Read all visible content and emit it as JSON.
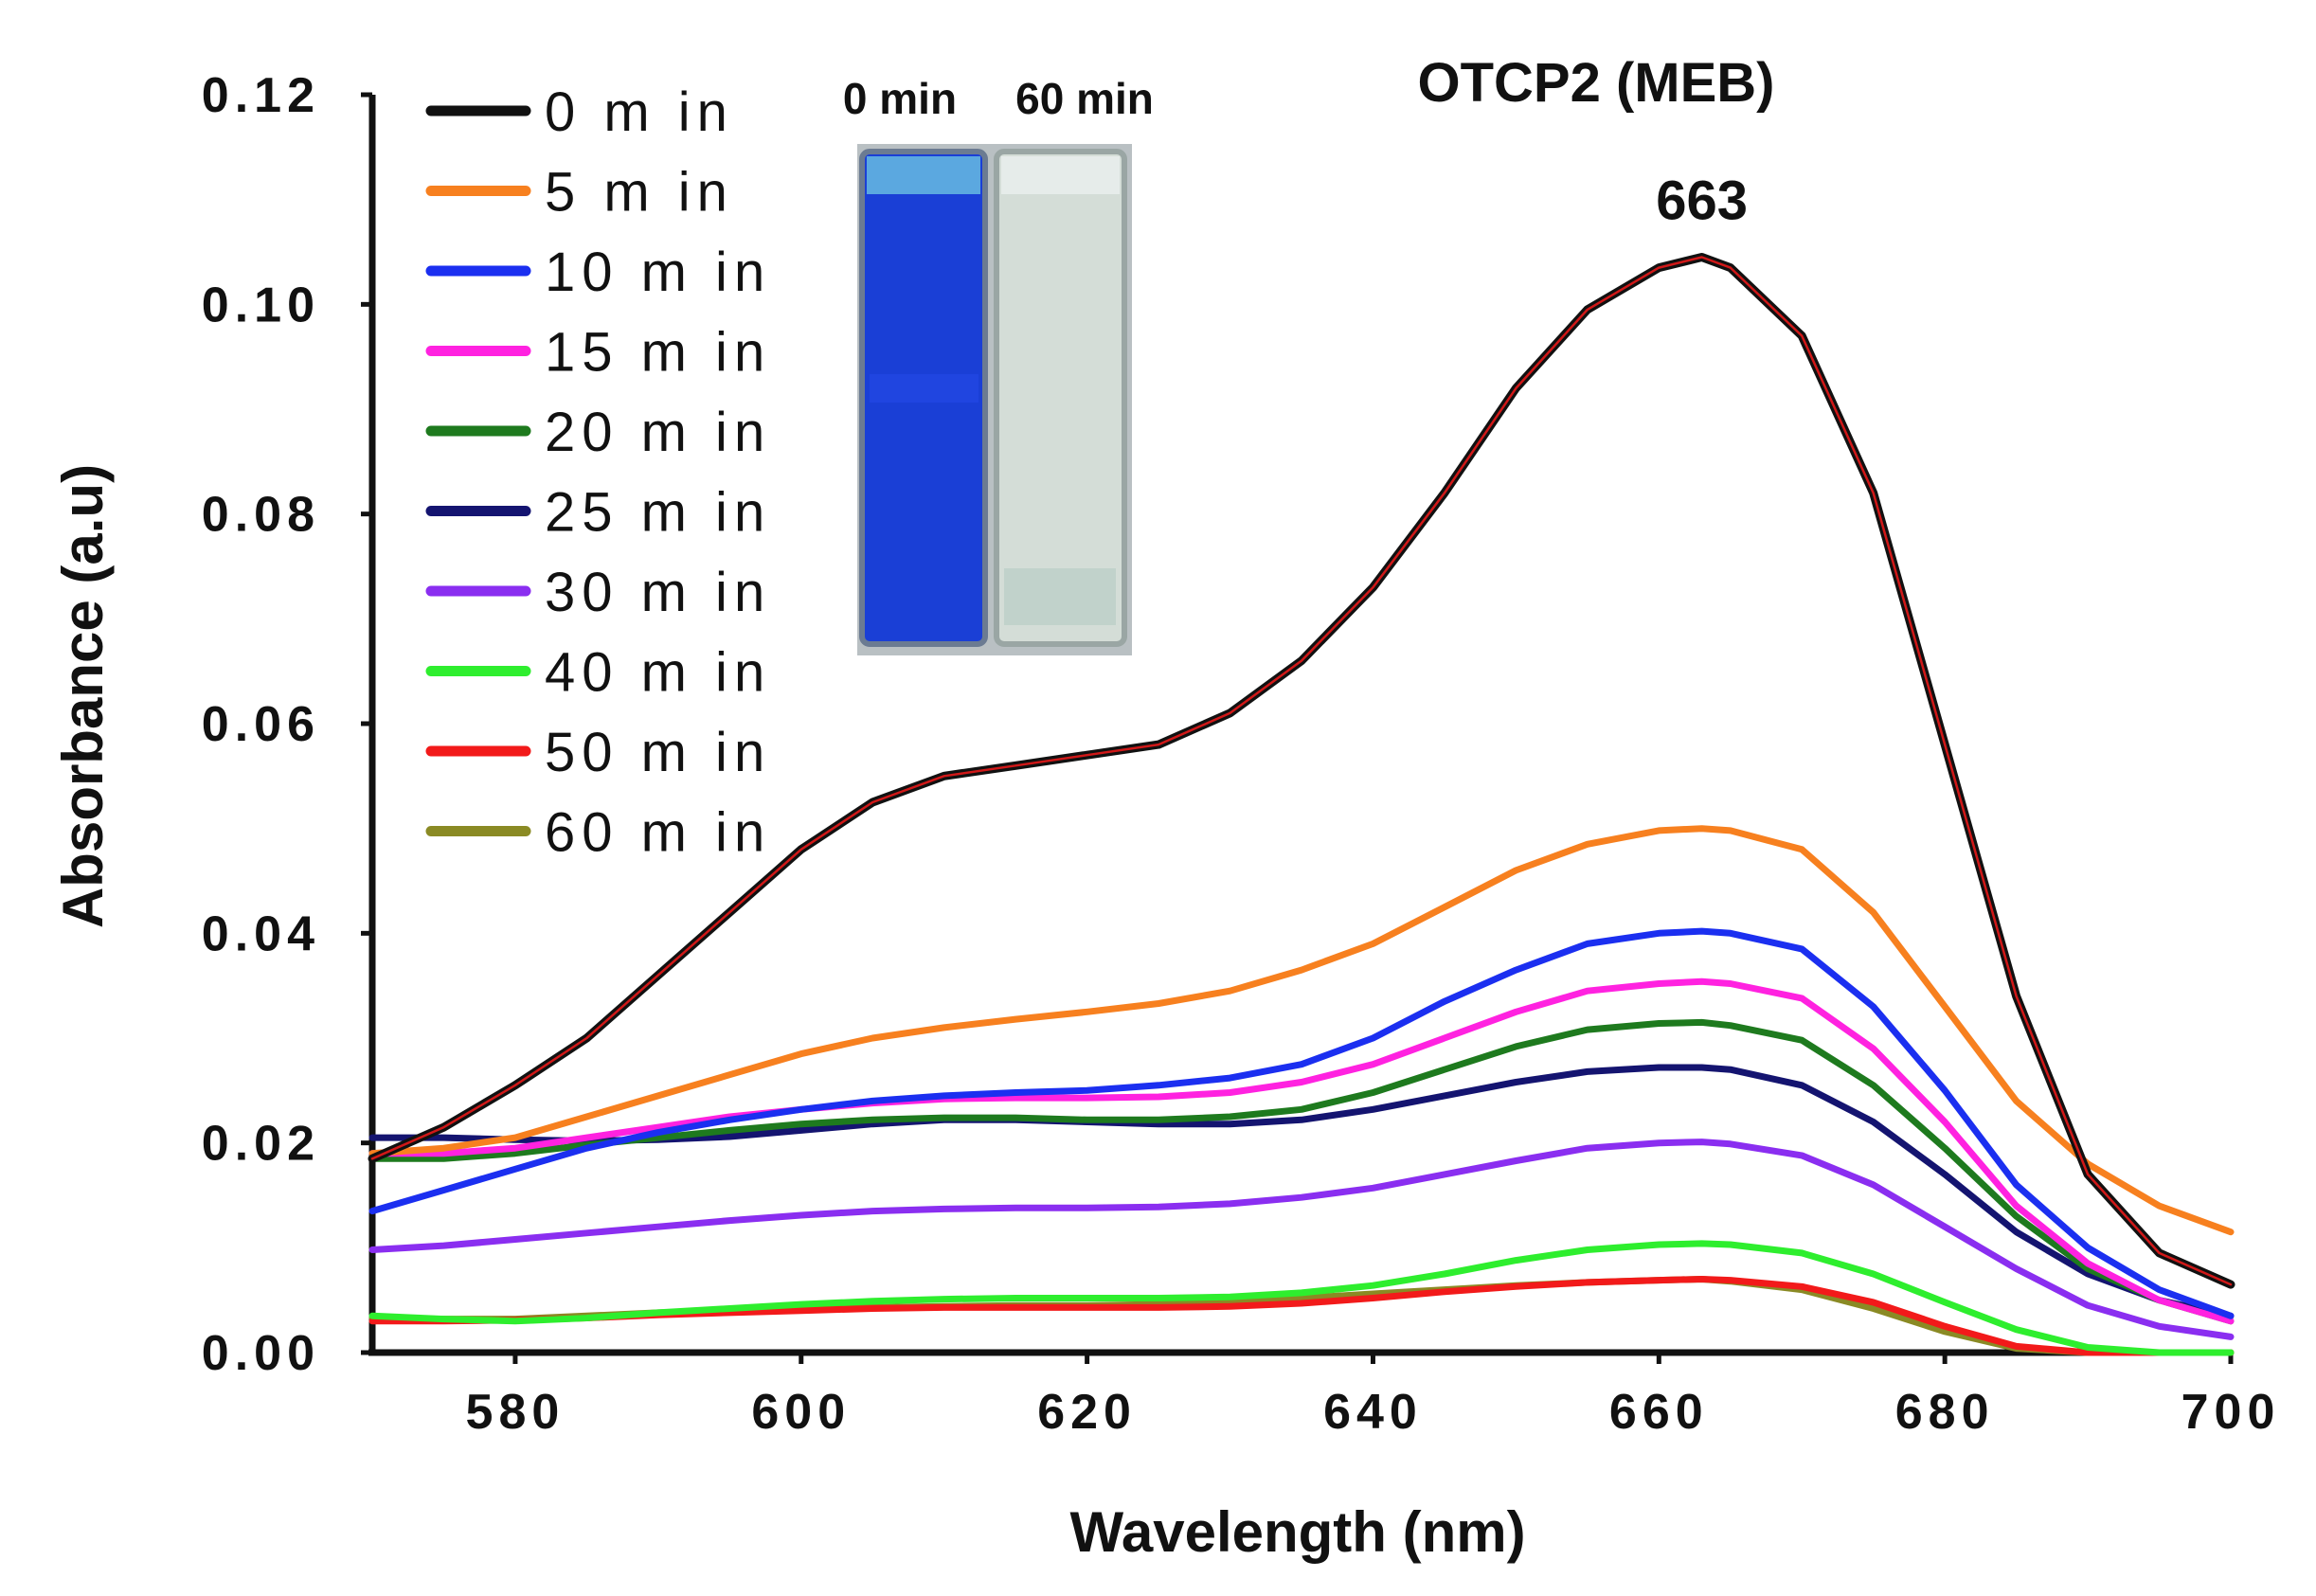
{
  "chart_data": {
    "type": "line",
    "title": "OTCP2 (MEB)",
    "xlabel": "Wavelength (nm)",
    "ylabel": "Absorbance (a.u)",
    "xlim": [
      570,
      700
    ],
    "ylim": [
      0,
      0.12
    ],
    "xticks": [
      580,
      600,
      620,
      640,
      660,
      680,
      700
    ],
    "yticks": [
      "0.00",
      "0.02",
      "0.04",
      "0.06",
      "0.08",
      "0.10",
      "0.12"
    ],
    "annotations": [
      {
        "text": "663",
        "x": 663,
        "y": 0.1045
      }
    ],
    "inset": {
      "labels": [
        "0 min",
        "60 min"
      ],
      "colors": [
        "#1a3fd6",
        "#d4ddd7"
      ]
    },
    "x": [
      570,
      575,
      580,
      585,
      590,
      595,
      600,
      605,
      610,
      615,
      620,
      625,
      630,
      635,
      640,
      645,
      650,
      655,
      660,
      663,
      665,
      670,
      675,
      680,
      685,
      690,
      695,
      700
    ],
    "series": [
      {
        "name": "0 m in",
        "color": "#111111",
        "width": 9,
        "core": "#d01818",
        "values": [
          0.0185,
          0.0215,
          0.0255,
          0.03,
          0.036,
          0.042,
          0.048,
          0.0525,
          0.055,
          0.056,
          0.057,
          0.058,
          0.061,
          0.066,
          0.073,
          0.082,
          0.092,
          0.0995,
          0.1035,
          0.1045,
          0.1035,
          0.097,
          0.082,
          0.058,
          0.034,
          0.017,
          0.0095,
          0.0065
        ]
      },
      {
        "name": "5 m in",
        "color": "#f7801f",
        "width": 7,
        "values": [
          0.019,
          0.0195,
          0.0205,
          0.0225,
          0.0245,
          0.0265,
          0.0285,
          0.03,
          0.031,
          0.0318,
          0.0325,
          0.0333,
          0.0345,
          0.0365,
          0.039,
          0.0425,
          0.046,
          0.0485,
          0.0498,
          0.05,
          0.0498,
          0.048,
          0.042,
          0.033,
          0.024,
          0.018,
          0.014,
          0.0115
        ]
      },
      {
        "name": "10 m in",
        "color": "#1b2ff0",
        "width": 7,
        "values": [
          0.0135,
          0.0155,
          0.0175,
          0.0195,
          0.021,
          0.0222,
          0.0232,
          0.024,
          0.0245,
          0.0248,
          0.025,
          0.0255,
          0.0262,
          0.0275,
          0.03,
          0.0335,
          0.0365,
          0.039,
          0.04,
          0.0402,
          0.04,
          0.0385,
          0.033,
          0.025,
          0.016,
          0.01,
          0.006,
          0.0035
        ]
      },
      {
        "name": "15 m in",
        "color": "#ff22e0",
        "width": 7,
        "values": [
          0.019,
          0.019,
          0.0195,
          0.0205,
          0.0215,
          0.0225,
          0.0232,
          0.0238,
          0.0242,
          0.0243,
          0.0243,
          0.0244,
          0.0248,
          0.0258,
          0.0275,
          0.03,
          0.0325,
          0.0345,
          0.0352,
          0.0354,
          0.0352,
          0.0338,
          0.029,
          0.022,
          0.014,
          0.0085,
          0.005,
          0.003
        ]
      },
      {
        "name": "20 m in",
        "color": "#1e7a1e",
        "width": 7,
        "values": [
          0.0185,
          0.0185,
          0.019,
          0.0198,
          0.0205,
          0.0212,
          0.0218,
          0.0222,
          0.0224,
          0.0224,
          0.0222,
          0.0222,
          0.0225,
          0.0232,
          0.0248,
          0.027,
          0.0292,
          0.0308,
          0.0314,
          0.0315,
          0.0312,
          0.0298,
          0.0255,
          0.0195,
          0.013,
          0.008,
          0.005,
          0.003
        ]
      },
      {
        "name": "25 m in",
        "color": "#141470",
        "width": 7,
        "values": [
          0.0205,
          0.0205,
          0.0203,
          0.0202,
          0.0203,
          0.0206,
          0.0212,
          0.0218,
          0.0222,
          0.0222,
          0.022,
          0.0218,
          0.0218,
          0.0222,
          0.0232,
          0.0245,
          0.0258,
          0.0268,
          0.0272,
          0.0272,
          0.027,
          0.0255,
          0.022,
          0.017,
          0.0115,
          0.0075,
          0.005,
          0.0035
        ]
      },
      {
        "name": "30 m in",
        "color": "#8a2ef0",
        "width": 7,
        "values": [
          0.0098,
          0.0102,
          0.0108,
          0.0114,
          0.012,
          0.0126,
          0.0131,
          0.0135,
          0.0137,
          0.0138,
          0.0138,
          0.0139,
          0.0142,
          0.0148,
          0.0157,
          0.017,
          0.0183,
          0.0195,
          0.02,
          0.0201,
          0.0199,
          0.0188,
          0.016,
          0.012,
          0.008,
          0.0045,
          0.0025,
          0.0015
        ]
      },
      {
        "name": "40 m in",
        "color": "#2eee2e",
        "width": 7,
        "values": [
          0.0035,
          0.0032,
          0.003,
          0.0033,
          0.0038,
          0.0042,
          0.0046,
          0.0049,
          0.0051,
          0.0052,
          0.0052,
          0.0052,
          0.0053,
          0.0057,
          0.0064,
          0.0075,
          0.0088,
          0.0098,
          0.0103,
          0.0104,
          0.0103,
          0.0095,
          0.0075,
          0.0048,
          0.0022,
          0.0005,
          0.0,
          0.0
        ]
      },
      {
        "name": "50 m in",
        "color": "#f21a1a",
        "width": 7,
        "values": [
          0.003,
          0.003,
          0.0031,
          0.0033,
          0.0036,
          0.0038,
          0.004,
          0.0042,
          0.0043,
          0.0043,
          0.0043,
          0.0043,
          0.0044,
          0.0047,
          0.0052,
          0.0058,
          0.0063,
          0.0067,
          0.0069,
          0.007,
          0.0069,
          0.0063,
          0.0048,
          0.0025,
          0.0006,
          0.0,
          0.0,
          0.0
        ]
      },
      {
        "name": "60 m in",
        "color": "#8a8a24",
        "width": 7,
        "values": [
          0.0033,
          0.0032,
          0.0032,
          0.0035,
          0.0038,
          0.004,
          0.0042,
          0.0043,
          0.0044,
          0.0045,
          0.0045,
          0.0046,
          0.0048,
          0.0052,
          0.0056,
          0.006,
          0.0064,
          0.0067,
          0.0069,
          0.007,
          0.0068,
          0.006,
          0.0042,
          0.002,
          0.0004,
          0.0,
          0.0,
          0.0
        ]
      }
    ]
  }
}
